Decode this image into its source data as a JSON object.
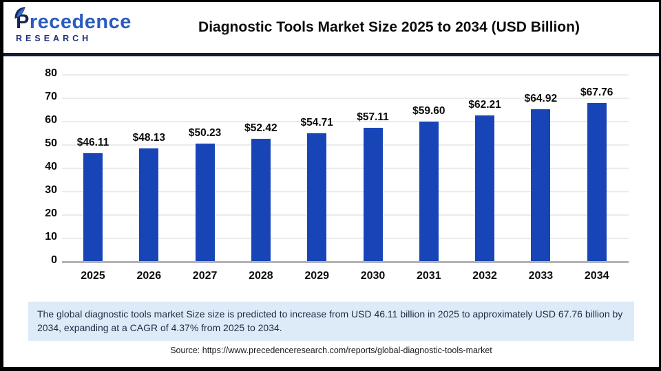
{
  "header": {
    "logo_line1": "Precedence",
    "logo_line2": "RESEARCH",
    "title": "Diagnostic Tools Market Size 2025 to 2034 (USD Billion)"
  },
  "chart_data": {
    "type": "bar",
    "title": "Diagnostic Tools Market Size 2025 to 2034 (USD Billion)",
    "categories": [
      "2025",
      "2026",
      "2027",
      "2028",
      "2029",
      "2030",
      "2031",
      "2032",
      "2033",
      "2034"
    ],
    "values": [
      46.11,
      48.13,
      50.23,
      52.42,
      54.71,
      57.11,
      59.6,
      62.21,
      64.92,
      67.76
    ],
    "value_labels": [
      "$46.11",
      "$48.13",
      "$50.23",
      "$52.42",
      "$54.71",
      "$57.11",
      "$59.60",
      "$62.21",
      "$64.92",
      "$67.76"
    ],
    "xlabel": "",
    "ylabel": "",
    "ylim": [
      0,
      80
    ],
    "yticks": [
      0,
      10,
      20,
      30,
      40,
      50,
      60,
      70,
      80
    ],
    "grid": true,
    "legend": false,
    "bar_color": "#1745b8"
  },
  "colors": {
    "bar": "#1745b8",
    "header_rule": "#131c3a",
    "summary_bg": "#ddeaf7",
    "gridline": "#ebebeb",
    "axis": "#b3b3b3",
    "logo_dark": "#162257",
    "logo_blue": "#2a5cc0"
  },
  "footer": {
    "summary": "The global diagnostic tools market Size size is predicted to increase from USD 46.11 billion in 2025 to approximately USD 67.76 billion by 2034, expanding at a CAGR of 4.37% from 2025 to 2034.",
    "source": "Source: https://www.precedenceresearch.com/reports/global-diagnostic-tools-market"
  }
}
